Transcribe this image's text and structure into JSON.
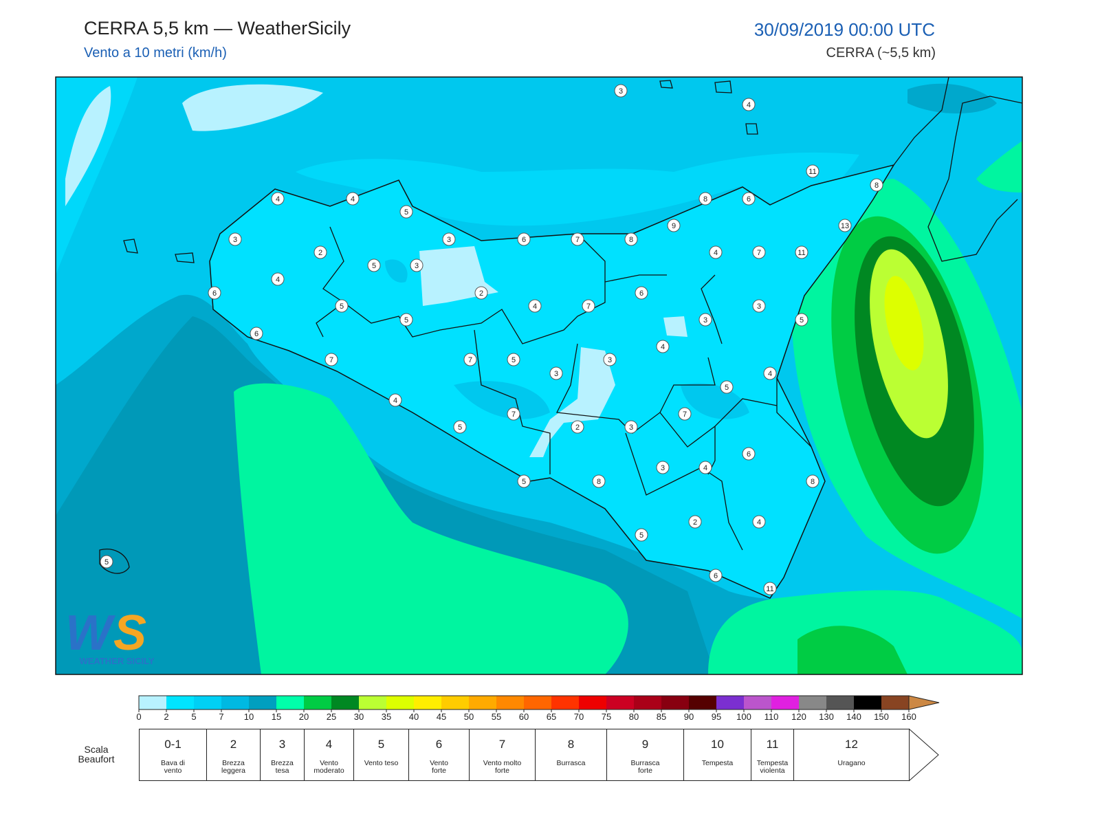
{
  "header": {
    "title": "CERRA 5,5 km — WeatherSicily",
    "subtitle": "Vento a 10 metri (km/h)",
    "datetime": "30/09/2019 00:00 UTC",
    "model": "CERRA (~5,5 km)"
  },
  "map": {
    "stations": [
      3,
      4,
      11,
      8,
      4,
      4,
      5,
      8,
      6,
      9,
      13,
      3,
      3,
      6,
      7,
      8,
      2,
      5,
      3,
      4,
      7,
      11,
      4,
      6,
      2,
      6,
      5,
      4,
      7,
      3,
      5,
      3,
      5,
      6,
      4,
      7,
      7,
      5,
      3,
      3,
      4,
      5,
      4,
      7,
      7,
      5,
      2,
      3,
      6,
      3,
      4,
      5,
      8,
      8,
      2,
      4,
      5,
      5,
      6,
      11
    ],
    "logo_text": "WEATHER SICILY"
  },
  "colorbar": {
    "ticks": [
      0,
      2,
      5,
      7,
      10,
      15,
      20,
      25,
      30,
      35,
      40,
      45,
      50,
      55,
      60,
      65,
      70,
      75,
      80,
      85,
      90,
      95,
      100,
      110,
      120,
      130,
      140,
      150,
      160
    ],
    "colors": [
      "#b8f2ff",
      "#00e4ff",
      "#00d0f5",
      "#00b9e2",
      "#009fbf",
      "#00ffaa",
      "#00cc44",
      "#008822",
      "#bbff33",
      "#ddff00",
      "#ffee00",
      "#ffcc00",
      "#ffaa00",
      "#ff8800",
      "#ff6600",
      "#ff3300",
      "#ee0000",
      "#cc0022",
      "#aa0018",
      "#880010",
      "#550000",
      "#7b2fd0",
      "#bb55cc",
      "#e020e0",
      "#888888",
      "#555555",
      "#000000",
      "#884422",
      "#cc8844"
    ]
  },
  "beaufort": {
    "label": "Scala Beaufort",
    "levels": [
      {
        "force": "0-1",
        "name": "Bava di vento"
      },
      {
        "force": 2,
        "name": "Brezza leggera"
      },
      {
        "force": 3,
        "name": "Brezza tesa"
      },
      {
        "force": 4,
        "name": "Vento moderato"
      },
      {
        "force": 5,
        "name": "Vento teso"
      },
      {
        "force": 6,
        "name": "Vento forte"
      },
      {
        "force": 7,
        "name": "Vento molto forte"
      },
      {
        "force": 8,
        "name": "Burrasca"
      },
      {
        "force": 9,
        "name": "Burrasca forte"
      },
      {
        "force": 10,
        "name": "Tempesta"
      },
      {
        "force": 11,
        "name": "Tempesta violenta"
      },
      {
        "force": 12,
        "name": "Uragano"
      }
    ]
  }
}
